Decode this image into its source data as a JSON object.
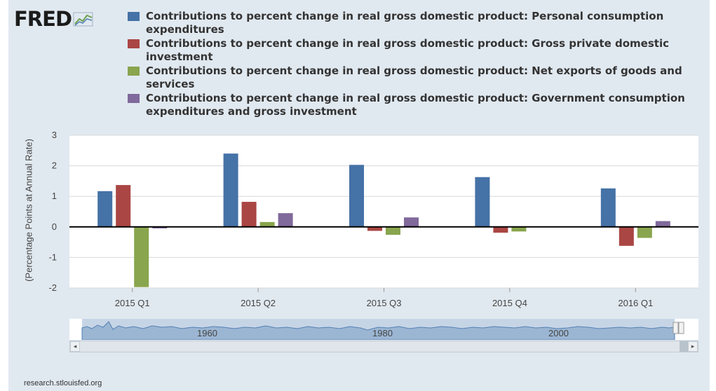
{
  "logo": {
    "text": "FRED",
    "icon": "fred-graph-icon"
  },
  "legend": [
    {
      "label": "Contributions to percent change in real gross domestic product: Personal consumption expenditures",
      "color": "#4572a7"
    },
    {
      "label": "Contributions to percent change in real gross domestic product: Gross private domestic investment",
      "color": "#aa4643"
    },
    {
      "label": "Contributions to percent change in real gross domestic product: Net exports of goods and services",
      "color": "#89a54e"
    },
    {
      "label": "Contributions to percent change in real gross domestic product: Government consumption expenditures and gross investment",
      "color": "#80699b"
    }
  ],
  "chart_data": {
    "type": "bar",
    "categories": [
      "2015 Q1",
      "2015 Q2",
      "2015 Q3",
      "2015 Q4",
      "2016 Q1"
    ],
    "series": [
      {
        "name": "Contributions to percent change in real gross domestic product: Personal consumption expenditures",
        "values": [
          1.17,
          2.4,
          2.03,
          1.63,
          1.26
        ]
      },
      {
        "name": "Contributions to percent change in real gross domestic product: Gross private domestic investment",
        "values": [
          1.37,
          0.82,
          -0.13,
          -0.19,
          -0.62
        ]
      },
      {
        "name": "Contributions to percent change in real gross domestic product: Net exports of goods and services",
        "values": [
          -1.97,
          0.16,
          -0.26,
          -0.15,
          -0.36
        ]
      },
      {
        "name": "Contributions to percent change in real gross domestic product: Government consumption expenditures and gross investment",
        "values": [
          -0.05,
          0.45,
          0.31,
          0.0,
          0.19
        ]
      }
    ],
    "ylabel": "(Percentage Points at Annual Rate)",
    "xlabel": "",
    "ylim": [
      -2,
      3
    ],
    "yticks": [
      "3",
      "2",
      "1",
      "0",
      "-1",
      "-2"
    ],
    "grid": true
  },
  "navigator": {
    "labels": [
      "1960",
      "1980",
      "2000"
    ]
  },
  "scrollbar": {
    "left_arrow": "◂",
    "right_arrow": "▸"
  },
  "source": "research.stlouisfed.org"
}
